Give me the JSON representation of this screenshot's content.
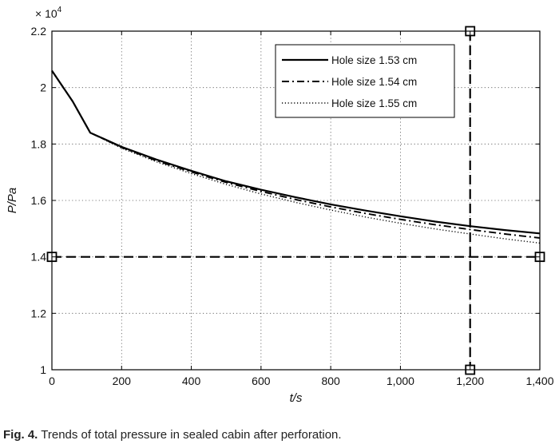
{
  "caption": {
    "label": "Fig. 4.",
    "text": "Trends of total pressure in sealed cabin after perforation."
  },
  "chart_data": {
    "type": "line",
    "title": "",
    "xlabel": "t/s",
    "ylabel": "P/Pa",
    "y_multiplier": "× 10",
    "y_multiplier_exp": "4",
    "xlim": [
      0,
      1400
    ],
    "ylim": [
      1.0,
      2.2
    ],
    "xticks": [
      0,
      200,
      400,
      600,
      800,
      1000,
      1200,
      1400
    ],
    "xtick_labels": [
      "0",
      "200",
      "400",
      "600",
      "800",
      "1,000",
      "1,200",
      "1,400"
    ],
    "yticks": [
      1.0,
      1.2,
      1.4,
      1.6,
      1.8,
      2.0,
      2.2
    ],
    "ytick_labels": [
      "1",
      "1.2",
      "1.4",
      "1.6",
      "1.8",
      "2",
      "2.2"
    ],
    "grid": true,
    "legend_position": "top-right",
    "x": [
      0,
      60,
      110,
      200,
      300,
      400,
      500,
      600,
      700,
      800,
      900,
      1000,
      1100,
      1200,
      1300,
      1400
    ],
    "series": [
      {
        "name": "Hole size 1.53 cm",
        "style": "solid",
        "values": [
          2.06,
          1.95,
          1.84,
          1.79,
          1.745,
          1.705,
          1.668,
          1.638,
          1.611,
          1.586,
          1.564,
          1.544,
          1.525,
          1.509,
          1.495,
          1.483
        ]
      },
      {
        "name": "Hole size 1.54 cm",
        "style": "dashdot",
        "values": [
          2.06,
          1.95,
          1.84,
          1.788,
          1.741,
          1.701,
          1.664,
          1.632,
          1.603,
          1.577,
          1.554,
          1.533,
          1.514,
          1.497,
          1.481,
          1.467
        ]
      },
      {
        "name": "Hole size 1.55 cm",
        "style": "dotted",
        "values": [
          2.06,
          1.95,
          1.84,
          1.785,
          1.737,
          1.695,
          1.657,
          1.623,
          1.593,
          1.566,
          1.541,
          1.519,
          1.499,
          1.481,
          1.464,
          1.449
        ]
      }
    ],
    "reference_lines": [
      {
        "orientation": "horizontal",
        "value": 1.4,
        "style": "dashed",
        "marker": "square"
      },
      {
        "orientation": "vertical",
        "value": 1200,
        "style": "dashed",
        "marker": "square"
      }
    ]
  }
}
